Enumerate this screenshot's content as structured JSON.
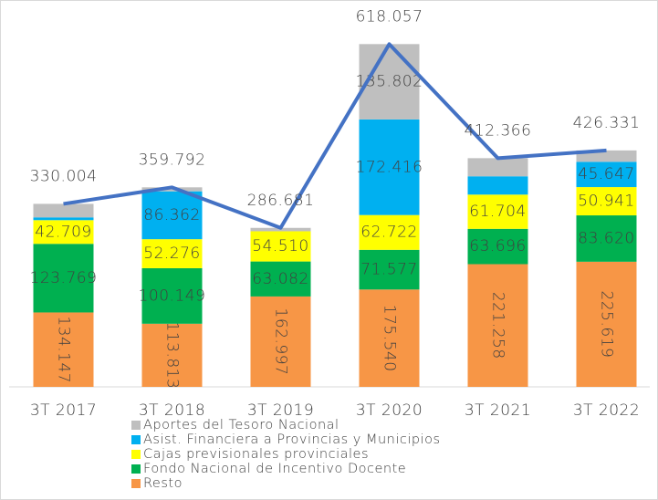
{
  "chart_data": {
    "type": "bar",
    "categories": [
      "3T 2017",
      "3T 2018",
      "3T 2019",
      "3T 2020",
      "3T 2021",
      "3T 2022"
    ],
    "series": [
      {
        "name": "Resto",
        "color": "#f79646",
        "values": [
          134147,
          113813,
          162997,
          175540,
          221258,
          225619
        ],
        "value_labels": [
          "134.147",
          "113.813",
          "162.997",
          "175.540",
          "221.258",
          "225.619"
        ]
      },
      {
        "name": "Fondo Nacional de Incentivo Docente",
        "color": "#00b050",
        "values": [
          123769,
          100149,
          63082,
          71577,
          63696,
          83620
        ],
        "value_labels": [
          "123.769",
          "100.149",
          "63.082",
          "71.577",
          "63.696",
          "83.620"
        ]
      },
      {
        "name": "Cajas previsionales provinciales",
        "color": "#ffff00",
        "values": [
          42709,
          52276,
          54510,
          62722,
          61704,
          50941
        ],
        "value_labels": [
          "42.709",
          "52.276",
          "54.510",
          "62.722",
          "61.704",
          "50.941"
        ]
      },
      {
        "name": "Asist. Financiera a Provincias y Municipios",
        "color": "#00b0f0",
        "values": [
          5000,
          86362,
          0,
          172416,
          33000,
          45647
        ],
        "value_labels": [
          null,
          "86.362",
          null,
          "172.416",
          null,
          "45.647"
        ]
      },
      {
        "name": "Aportes del Tesoro Nacional",
        "color": "#bfbfbf",
        "values": [
          24379,
          7192,
          6092,
          135802,
          32708,
          20504
        ],
        "value_labels": [
          null,
          null,
          null,
          "135.802",
          null,
          null
        ]
      }
    ],
    "totals": {
      "type": "line",
      "color": "#4472c4",
      "values": [
        330004,
        359792,
        286681,
        618057,
        412366,
        426331
      ],
      "value_labels": [
        "330.004",
        "359.792",
        "286.681",
        "618.057",
        "412.366",
        "426.331"
      ]
    },
    "ylim": [
      0,
      640000
    ]
  }
}
